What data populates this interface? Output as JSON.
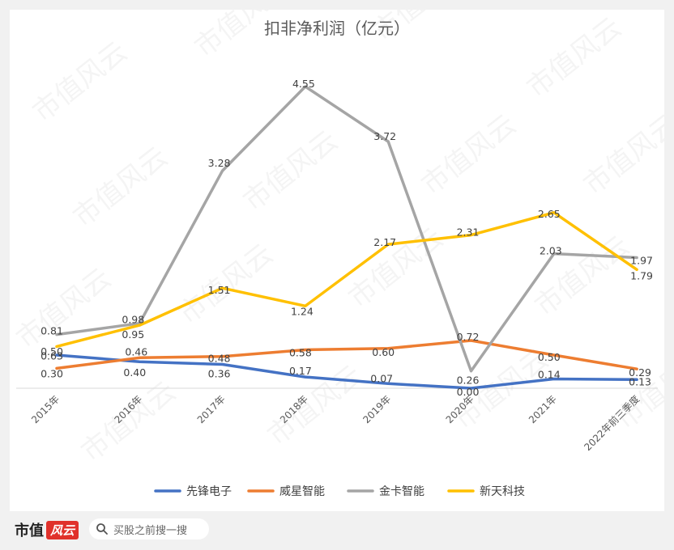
{
  "chart_data": {
    "type": "line",
    "title": "扣非净利润（亿元）",
    "categories": [
      "2015年",
      "2016年",
      "2017年",
      "2018年",
      "2019年",
      "2020年",
      "2021年",
      "2022年前三季度"
    ],
    "series": [
      {
        "name": "先锋电子",
        "color": "#4472c4",
        "values": [
          0.5,
          0.4,
          0.36,
          0.17,
          0.07,
          0.0,
          0.14,
          0.13
        ],
        "labels": [
          "0.50",
          "0.40",
          "0.36",
          "0.17",
          "0.07",
          "0.00",
          "0.14",
          "0.13"
        ]
      },
      {
        "name": "威星智能",
        "color": "#ed7d31",
        "values": [
          0.3,
          0.46,
          0.48,
          0.58,
          0.6,
          0.72,
          0.5,
          0.29
        ],
        "labels": [
          "0.30",
          "0.46",
          "0.48",
          "0.58",
          "0.60",
          "0.72",
          "0.50",
          "0.29"
        ]
      },
      {
        "name": "金卡智能",
        "color": "#a5a5a5",
        "values": [
          0.81,
          0.98,
          3.28,
          4.55,
          3.72,
          0.26,
          2.03,
          1.97
        ],
        "labels": [
          "0.81",
          "0.98",
          "3.28",
          "4.55",
          "3.72",
          "0.26",
          "2.03",
          "1.97"
        ]
      },
      {
        "name": "新天科技",
        "color": "#ffc000",
        "values": [
          0.63,
          0.95,
          1.51,
          1.24,
          2.17,
          2.31,
          2.65,
          1.79
        ],
        "labels": [
          "0.63",
          "0.95",
          "1.51",
          "1.24",
          "2.17",
          "2.31",
          "2.65",
          "1.79"
        ]
      }
    ],
    "ylim": [
      0,
      4.55
    ],
    "grid": false,
    "legend": "bottom",
    "watermark": "市值风云"
  },
  "footer": {
    "brand": "市值",
    "brand_badge": "风云",
    "search_placeholder": "买股之前搜一搜"
  }
}
